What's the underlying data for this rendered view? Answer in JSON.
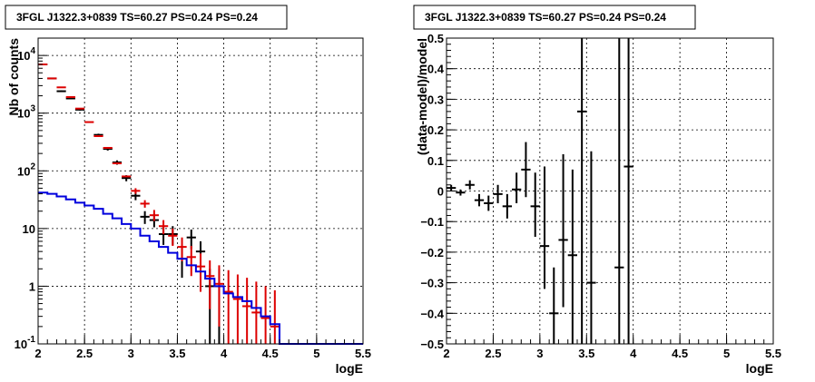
{
  "colors": {
    "data": "#000000",
    "model": "#dd0000",
    "background": "#0000dd"
  },
  "chart_data": [
    {
      "type": "scatter",
      "title": "3FGL J1322.3+0839 TS=60.27 PS=0.24 PS=0.24",
      "xlabel": "logE",
      "ylabel": "Nb of counts",
      "xlim": [
        2,
        5.5
      ],
      "ylim": [
        0.1,
        20000
      ],
      "yscale": "log",
      "grid": true,
      "x_ticks": [
        "2",
        "2.5",
        "3",
        "3.5",
        "4",
        "4.5",
        "5",
        "5.5"
      ],
      "y_ticks": [
        {
          "value": 0.1,
          "label": "10",
          "exp": "-1"
        },
        {
          "value": 1,
          "label": "1",
          "exp": ""
        },
        {
          "value": 10,
          "label": "10",
          "exp": ""
        },
        {
          "value": 100,
          "label": "10",
          "exp": "2"
        },
        {
          "value": 1000,
          "label": "10",
          "exp": "3"
        },
        {
          "value": 10000,
          "label": "10",
          "exp": "4"
        }
      ],
      "series": [
        {
          "role": "data",
          "color": "#000000",
          "points": [
            {
              "x": 2.05,
              "y": 7000,
              "lo": 6800,
              "hi": 7200
            },
            {
              "x": 2.15,
              "y": 4000,
              "lo": 3880,
              "hi": 4120
            },
            {
              "x": 2.25,
              "y": 2400,
              "lo": 2320,
              "hi": 2480
            },
            {
              "x": 2.35,
              "y": 1800,
              "lo": 1740,
              "hi": 1860
            },
            {
              "x": 2.45,
              "y": 1150,
              "lo": 1110,
              "hi": 1190
            },
            {
              "x": 2.65,
              "y": 420,
              "lo": 400,
              "hi": 440
            },
            {
              "x": 2.75,
              "y": 240,
              "lo": 225,
              "hi": 255
            },
            {
              "x": 2.85,
              "y": 140,
              "lo": 128,
              "hi": 152
            },
            {
              "x": 2.95,
              "y": 75,
              "lo": 66,
              "hi": 84
            },
            {
              "x": 3.05,
              "y": 37,
              "lo": 31,
              "hi": 43
            },
            {
              "x": 3.15,
              "y": 16,
              "lo": 12,
              "hi": 20
            },
            {
              "x": 3.25,
              "y": 14,
              "lo": 10.5,
              "hi": 18
            },
            {
              "x": 3.35,
              "y": 8,
              "lo": 5.2,
              "hi": 11
            },
            {
              "x": 3.45,
              "y": 8,
              "lo": 5.2,
              "hi": 11
            },
            {
              "x": 3.55,
              "y": 3,
              "lo": 1.4,
              "hi": 4.6
            },
            {
              "x": 3.65,
              "y": 7,
              "lo": 4.4,
              "hi": 9.6
            },
            {
              "x": 3.75,
              "y": 4,
              "lo": 2,
              "hi": 6
            },
            {
              "x": 3.85,
              "y": 1,
              "lo": 0.1,
              "hi": 2
            },
            {
              "x": 3.95,
              "y": 1,
              "lo": 0.1,
              "hi": 2
            }
          ]
        },
        {
          "role": "model",
          "color": "#dd0000",
          "points": [
            {
              "x": 2.05,
              "y": 7000,
              "lo": 7000,
              "hi": 7000
            },
            {
              "x": 2.15,
              "y": 4000,
              "lo": 4000,
              "hi": 4000
            },
            {
              "x": 2.25,
              "y": 2800,
              "lo": 2800,
              "hi": 2800
            },
            {
              "x": 2.35,
              "y": 1900,
              "lo": 1900,
              "hi": 1900
            },
            {
              "x": 2.45,
              "y": 1200,
              "lo": 1200,
              "hi": 1200
            },
            {
              "x": 2.55,
              "y": 700,
              "lo": 700,
              "hi": 700
            },
            {
              "x": 2.65,
              "y": 400,
              "lo": 400,
              "hi": 400
            },
            {
              "x": 2.75,
              "y": 250,
              "lo": 250,
              "hi": 250
            },
            {
              "x": 2.85,
              "y": 135,
              "lo": 135,
              "hi": 135
            },
            {
              "x": 2.95,
              "y": 80,
              "lo": 80,
              "hi": 80
            },
            {
              "x": 3.05,
              "y": 45,
              "lo": 40,
              "hi": 50
            },
            {
              "x": 3.15,
              "y": 27,
              "lo": 23,
              "hi": 31
            },
            {
              "x": 3.25,
              "y": 17,
              "lo": 13.5,
              "hi": 21
            },
            {
              "x": 3.35,
              "y": 11,
              "lo": 8,
              "hi": 14
            },
            {
              "x": 3.45,
              "y": 7.5,
              "lo": 5,
              "hi": 10
            },
            {
              "x": 3.55,
              "y": 4.8,
              "lo": 2.7,
              "hi": 7
            },
            {
              "x": 3.65,
              "y": 3.2,
              "lo": 1.5,
              "hi": 5
            },
            {
              "x": 3.75,
              "y": 2.2,
              "lo": 0.8,
              "hi": 3.7
            },
            {
              "x": 3.85,
              "y": 1.5,
              "lo": 0.4,
              "hi": 2.8
            },
            {
              "x": 3.95,
              "y": 1.1,
              "lo": 0.2,
              "hi": 2.3
            },
            {
              "x": 4.05,
              "y": 0.8,
              "lo": 0.1,
              "hi": 1.9
            },
            {
              "x": 4.15,
              "y": 0.6,
              "lo": 0.1,
              "hi": 1.6
            },
            {
              "x": 4.25,
              "y": 0.45,
              "lo": 0.1,
              "hi": 1.4
            },
            {
              "x": 4.35,
              "y": 0.35,
              "lo": 0.1,
              "hi": 1.2
            },
            {
              "x": 4.45,
              "y": 0.28,
              "lo": 0.1,
              "hi": 1.0
            },
            {
              "x": 4.55,
              "y": 0.2,
              "lo": 0.1,
              "hi": 0.85
            }
          ]
        },
        {
          "role": "background",
          "color": "#0000dd",
          "style": "step",
          "edges": [
            2.0,
            2.1,
            2.2,
            2.3,
            2.4,
            2.5,
            2.6,
            2.7,
            2.8,
            2.9,
            3.0,
            3.1,
            3.2,
            3.3,
            3.4,
            3.5,
            3.6,
            3.7,
            3.8,
            3.9,
            4.0,
            4.1,
            4.2,
            4.3,
            4.4,
            4.5,
            4.6,
            5.5
          ],
          "values": [
            42,
            40,
            36,
            32,
            28,
            25,
            22,
            18,
            15,
            12,
            10,
            7.5,
            6,
            4.8,
            3.8,
            3,
            2.3,
            1.8,
            1.35,
            1.0,
            0.75,
            0.65,
            0.55,
            0.42,
            0.3,
            0.22,
            0.1
          ]
        }
      ]
    },
    {
      "type": "scatter",
      "title": "3FGL J1322.3+0839 TS=60.27 PS=0.24 PS=0.24",
      "xlabel": "logE",
      "ylabel": "(data-model)/model",
      "xlim": [
        2,
        5.5
      ],
      "ylim": [
        -0.5,
        0.5
      ],
      "grid": true,
      "x_ticks": [
        "2",
        "2.5",
        "3",
        "3.5",
        "4",
        "4.5",
        "5",
        "5.5"
      ],
      "y_ticks": [
        "-0.5",
        "-0.4",
        "-0.3",
        "-0.2",
        "-0.1",
        "0",
        "0.1",
        "0.2",
        "0.3",
        "0.4",
        "0.5"
      ],
      "series": [
        {
          "role": "residual",
          "color": "#000000",
          "points": [
            {
              "x": 2.05,
              "y": 0.01,
              "lo": 0.0,
              "hi": 0.02
            },
            {
              "x": 2.15,
              "y": -0.005,
              "lo": -0.015,
              "hi": 0.005
            },
            {
              "x": 2.25,
              "y": 0.02,
              "lo": 0.005,
              "hi": 0.035
            },
            {
              "x": 2.35,
              "y": -0.03,
              "lo": -0.05,
              "hi": -0.01
            },
            {
              "x": 2.45,
              "y": -0.04,
              "lo": -0.065,
              "hi": -0.015
            },
            {
              "x": 2.55,
              "y": -0.01,
              "lo": -0.04,
              "hi": 0.02
            },
            {
              "x": 2.65,
              "y": -0.05,
              "lo": -0.09,
              "hi": -0.01
            },
            {
              "x": 2.75,
              "y": 0.005,
              "lo": -0.04,
              "hi": 0.06
            },
            {
              "x": 2.85,
              "y": 0.07,
              "lo": -0.02,
              "hi": 0.16
            },
            {
              "x": 2.95,
              "y": -0.05,
              "lo": -0.15,
              "hi": 0.06
            },
            {
              "x": 3.05,
              "y": -0.18,
              "lo": -0.32,
              "hi": 0.08
            },
            {
              "x": 3.15,
              "y": -0.4,
              "lo": -0.5,
              "hi": -0.25
            },
            {
              "x": 3.25,
              "y": -0.16,
              "lo": -0.38,
              "hi": 0.12
            },
            {
              "x": 3.35,
              "y": -0.21,
              "lo": -0.5,
              "hi": 0.07
            },
            {
              "x": 3.45,
              "y": 0.26,
              "lo": -0.5,
              "hi": 0.5
            },
            {
              "x": 3.55,
              "y": -0.3,
              "lo": -0.5,
              "hi": 0.13
            },
            {
              "x": 3.85,
              "y": -0.25,
              "lo": -0.5,
              "hi": 0.5
            },
            {
              "x": 3.95,
              "y": 0.08,
              "lo": -0.5,
              "hi": 0.5
            }
          ]
        }
      ]
    }
  ]
}
